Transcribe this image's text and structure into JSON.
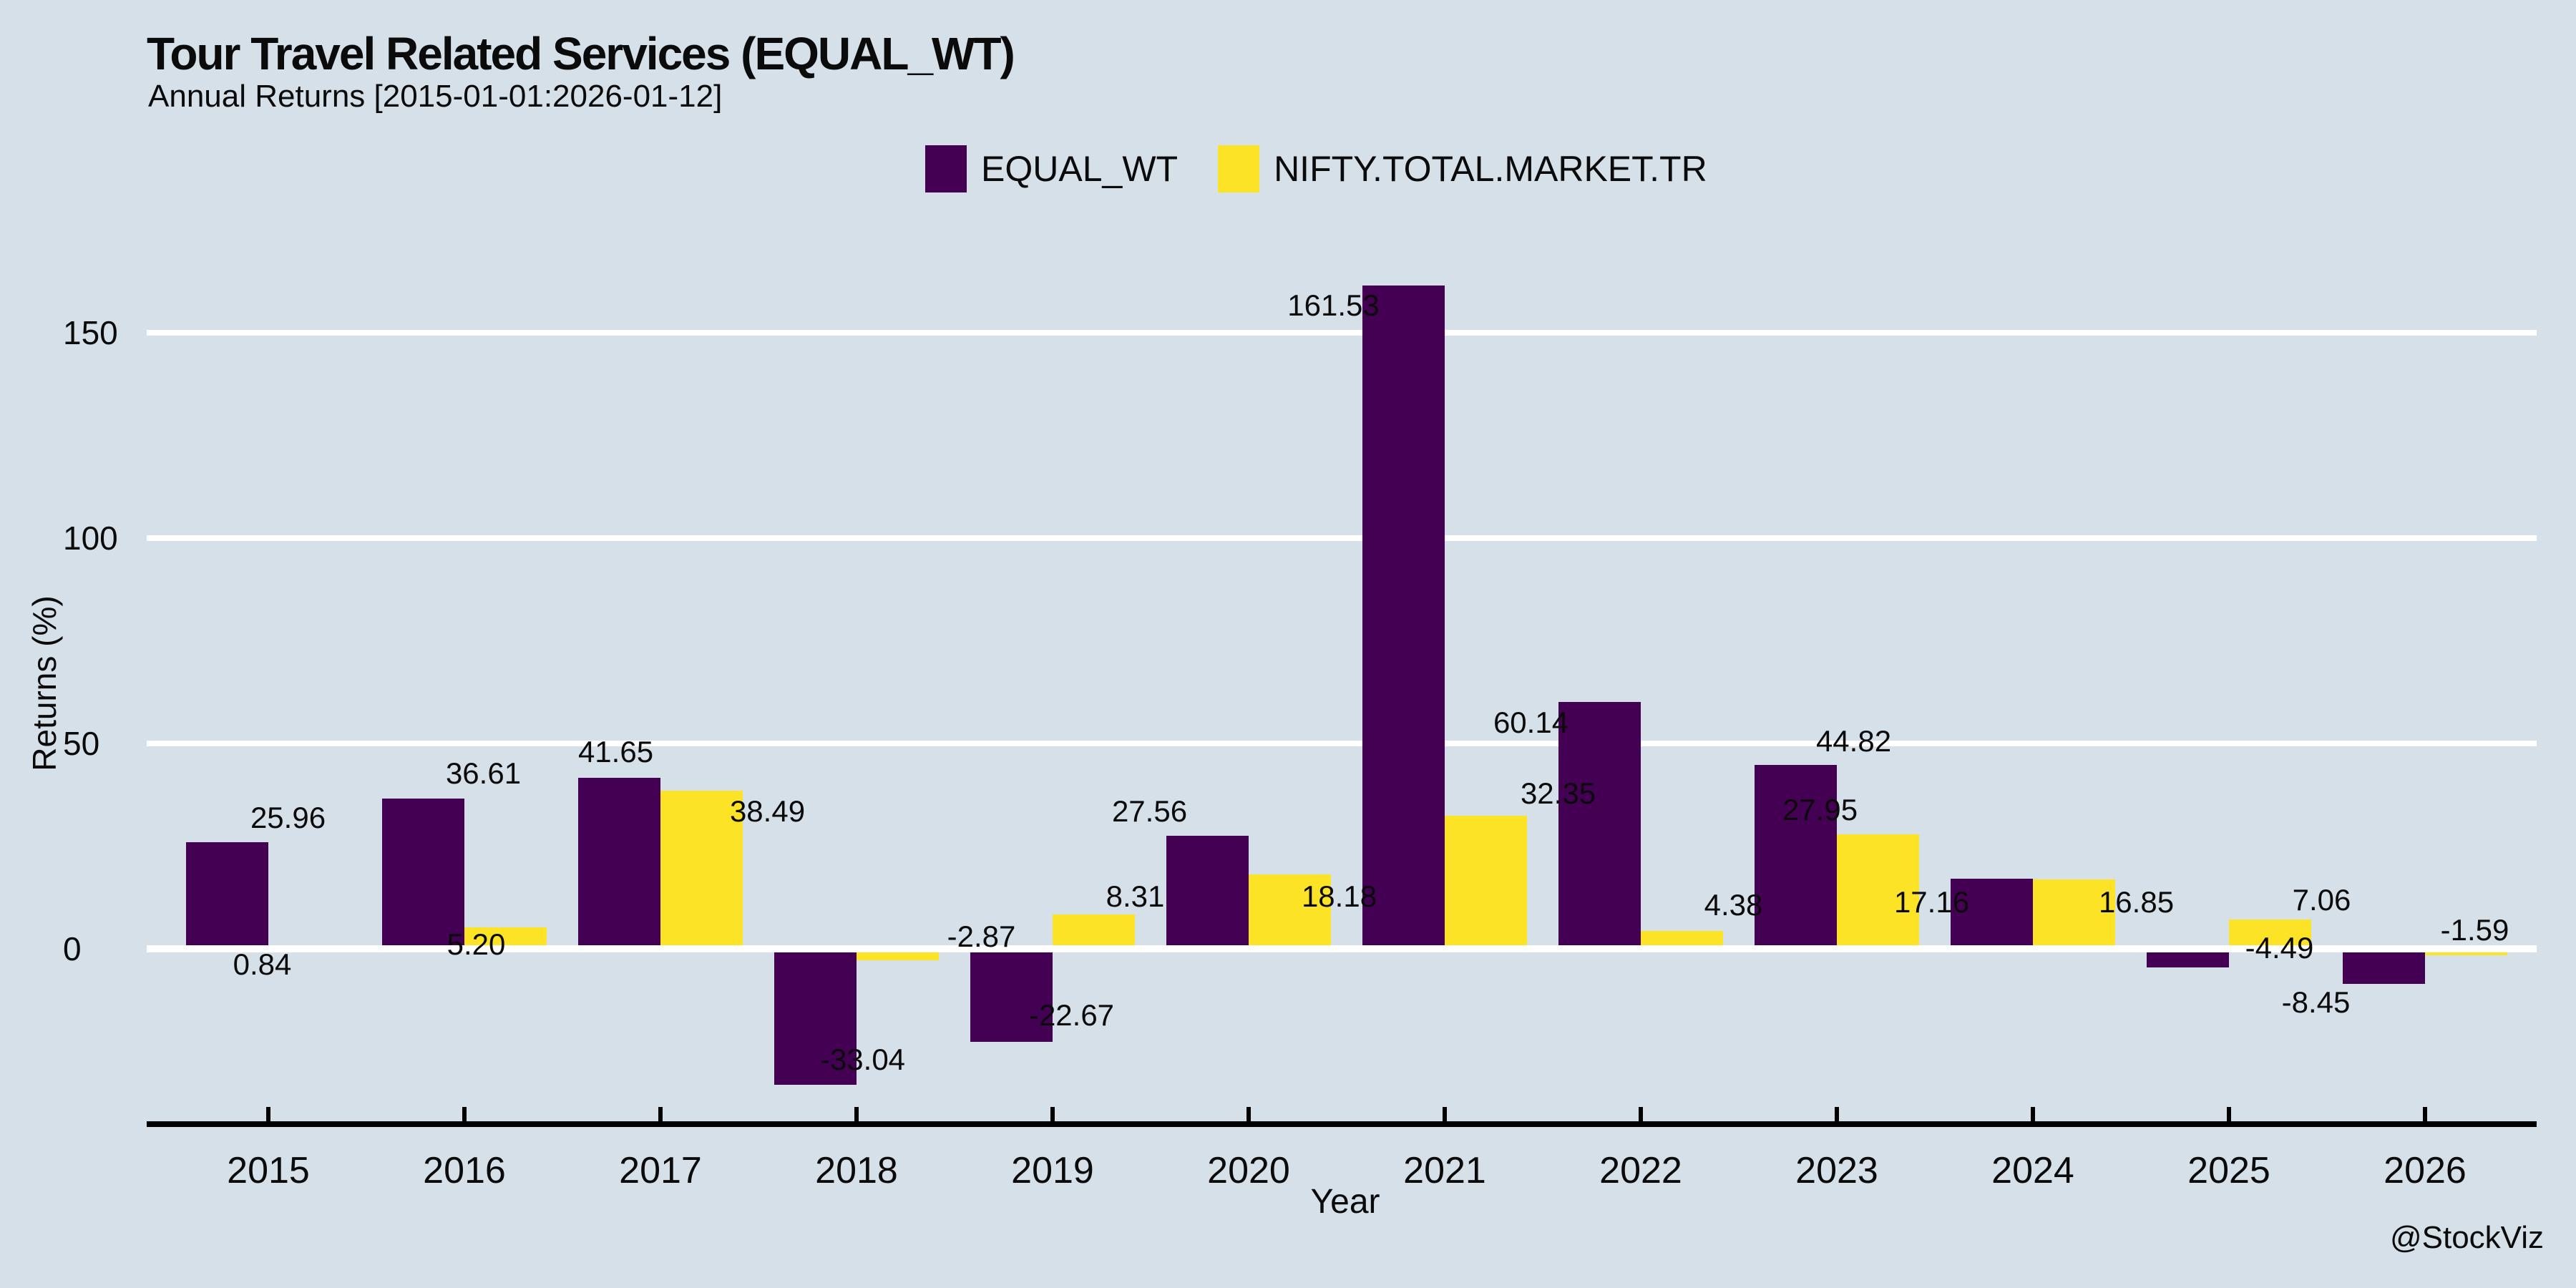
{
  "header": {
    "title": "Tour Travel Related Services (EQUAL_WT)",
    "subtitle": "Annual Returns [2015-01-01:2026-01-12]"
  },
  "attribution": "@StockViz",
  "chart_data": {
    "type": "bar",
    "title": "Tour Travel Related Services (EQUAL_WT)",
    "subtitle": "Annual Returns [2015-01-01:2026-01-12]",
    "xlabel": "Year",
    "ylabel": "Returns (%)",
    "categories": [
      "2015",
      "2016",
      "2017",
      "2018",
      "2019",
      "2020",
      "2021",
      "2022",
      "2023",
      "2024",
      "2025",
      "2026"
    ],
    "series": [
      {
        "name": "EQUAL_WT",
        "color": "#440154",
        "values": [
          25.96,
          36.61,
          41.65,
          -33.04,
          -22.67,
          27.56,
          161.53,
          60.14,
          44.82,
          17.16,
          -4.49,
          -8.45
        ]
      },
      {
        "name": "NIFTY.TOTAL.MARKET.TR",
        "color": "#fce325",
        "values": [
          0.84,
          5.2,
          38.49,
          -2.87,
          8.31,
          18.18,
          32.35,
          4.38,
          27.95,
          16.85,
          7.06,
          -1.59
        ]
      }
    ],
    "yticks": [
      0,
      50,
      100,
      150
    ],
    "ylim": [
      -50,
      175
    ],
    "grid": true,
    "gridline_color": "#ffffff",
    "background_color": "#d6e0e8",
    "legend_position": "top",
    "value_labels": true
  }
}
